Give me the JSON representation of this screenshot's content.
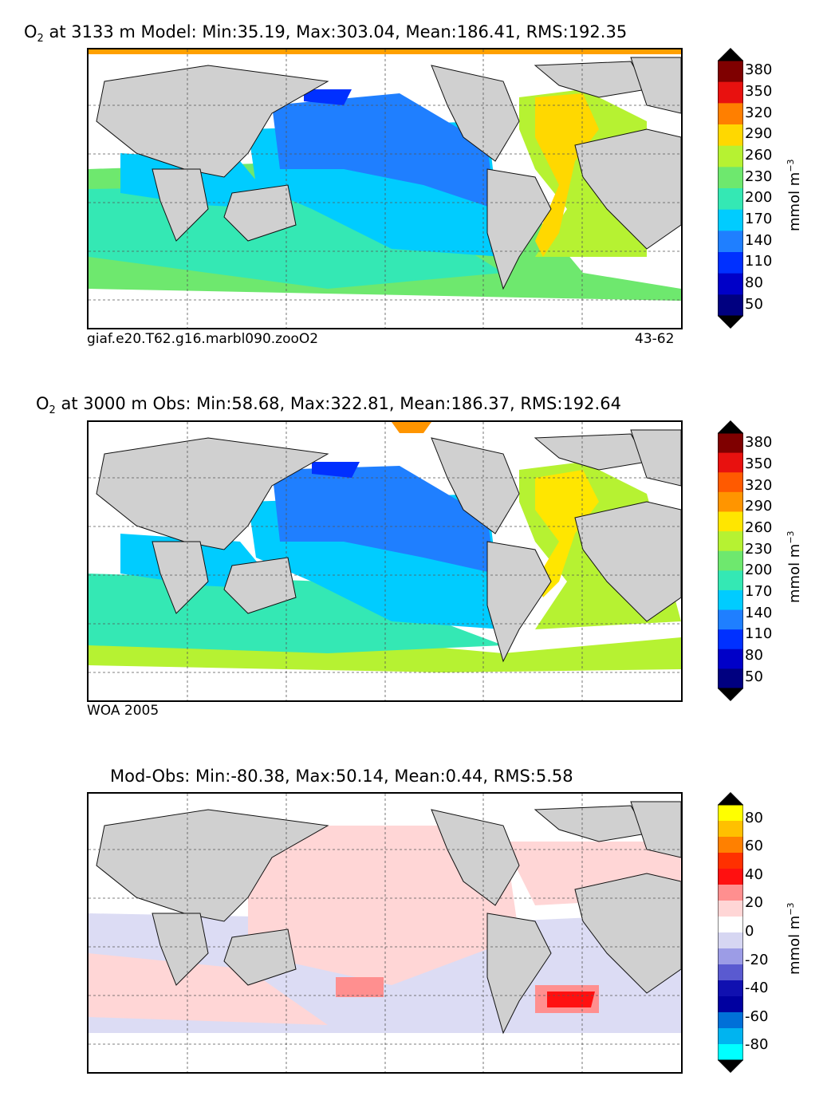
{
  "panels": [
    {
      "title_prefix": "O",
      "title_sub": "2",
      "title_rest": "at 3133 m Model: Min:35.19, Max:303.04, Mean:186.41, RMS:192.35",
      "note_left": "giaf.e20.T62.g16.marbl090.zooO2",
      "note_right": "43-62",
      "units_text": "mmol m",
      "units_sup": "−3",
      "colorbar": {
        "ticks": [
          "380",
          "350",
          "320",
          "290",
          "260",
          "230",
          "200",
          "170",
          "140",
          "110",
          "80",
          "50"
        ],
        "colors": [
          "#7f0000",
          "#e8110f",
          "#ff7f00",
          "#ffd800",
          "#b6f232",
          "#6ee86e",
          "#34e8b4",
          "#00ccff",
          "#1f7fff",
          "#0030ff",
          "#0000c8",
          "#000080"
        ],
        "extend_colors": [
          "#000000",
          "#000000"
        ]
      }
    },
    {
      "title_prefix": "O",
      "title_sub": "2",
      "title_rest": "at 3000 m Obs: Min:58.68, Max:322.81, Mean:186.37, RMS:192.64",
      "note_left": "WOA 2005",
      "note_right": "",
      "units_text": "mmol m",
      "units_sup": "−3",
      "colorbar": {
        "ticks": [
          "380",
          "350",
          "320",
          "290",
          "260",
          "230",
          "200",
          "170",
          "140",
          "110",
          "80",
          "50"
        ],
        "colors": [
          "#7f0000",
          "#e8110f",
          "#ff5a00",
          "#ff9500",
          "#ffe600",
          "#b6f232",
          "#6ee86e",
          "#34e8b4",
          "#00ccff",
          "#1f7fff",
          "#0030ff",
          "#0000c8",
          "#000080"
        ],
        "extend_colors": [
          "#000000",
          "#000000"
        ]
      }
    },
    {
      "title_prefix": "",
      "title_sub": "",
      "title_rest": "Mod-Obs: Min:-80.38, Max:50.14, Mean:0.44, RMS:5.58",
      "note_left": "",
      "note_right": "",
      "units_text": "mmol m",
      "units_sup": "−3",
      "colorbar": {
        "ticks": [
          "80",
          "60",
          "40",
          "20",
          "0",
          "-20",
          "-40",
          "-60",
          "-80"
        ],
        "colors": [
          "#ffff00",
          "#ffc000",
          "#ff8000",
          "#ff3000",
          "#ff1010",
          "#ff8f8f",
          "#ffd6d6",
          "#ffffff",
          "#d6d6f2",
          "#9c9ce6",
          "#5a5ad0",
          "#1010b0",
          "#0000a0",
          "#0070d8",
          "#00b4f0",
          "#00ffff"
        ],
        "extend_colors": [
          "#000000",
          "#000000"
        ]
      }
    }
  ]
}
